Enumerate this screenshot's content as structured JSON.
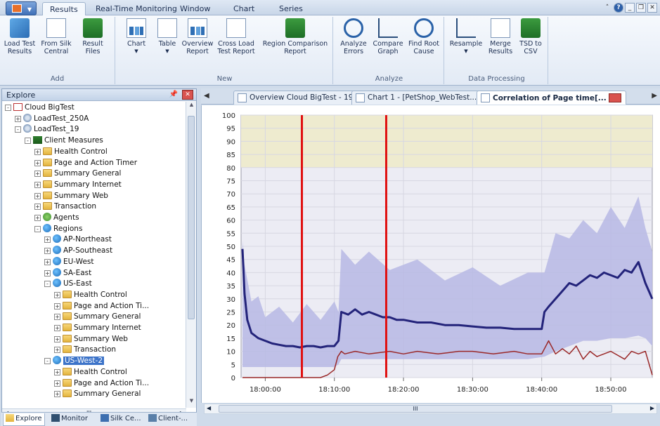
{
  "ribbon_tabs": [
    {
      "label": "Results",
      "active": true
    },
    {
      "label": "Real-Time Monitoring",
      "active": false
    },
    {
      "label": "Window",
      "active": false
    },
    {
      "label": "Chart",
      "active": false
    },
    {
      "label": "Series",
      "active": false
    }
  ],
  "ribbon": {
    "groups": [
      {
        "label": "Add",
        "buttons": [
          "Load Test Results",
          "From Silk Central",
          "Result Files"
        ]
      },
      {
        "label": "New",
        "buttons": [
          "Chart",
          "Table",
          "Overview Report",
          "Cross Load Test Report",
          "Region Comparison Report"
        ]
      },
      {
        "label": "Analyze",
        "buttons": [
          "Analyze Errors",
          "Compare Graph",
          "Find Root Cause"
        ]
      },
      {
        "label": "Data Processing",
        "buttons": [
          "Resample",
          "Merge Results",
          "TSD to CSV"
        ]
      }
    ]
  },
  "explore": {
    "title": "Explore",
    "tree": [
      {
        "label": "Cloud BigTest",
        "level": 0,
        "icon": "project-icon",
        "exp": "-"
      },
      {
        "label": "LoadTest_250A",
        "level": 1,
        "icon": "gear-icon",
        "exp": "+"
      },
      {
        "label": "LoadTest_19",
        "level": 1,
        "icon": "gear-icon",
        "exp": "-"
      },
      {
        "label": "Client Measures",
        "level": 2,
        "icon": "measures-icon",
        "exp": "-"
      },
      {
        "label": "Health Control",
        "level": 3,
        "icon": "folder-icon",
        "exp": "+"
      },
      {
        "label": "Page and Action Timer",
        "level": 3,
        "icon": "folder-icon",
        "exp": "+"
      },
      {
        "label": "Summary General",
        "level": 3,
        "icon": "folder-icon",
        "exp": "+"
      },
      {
        "label": "Summary Internet",
        "level": 3,
        "icon": "folder-icon",
        "exp": "+"
      },
      {
        "label": "Summary Web",
        "level": 3,
        "icon": "folder-icon",
        "exp": "+"
      },
      {
        "label": "Transaction",
        "level": 3,
        "icon": "folder-icon",
        "exp": "+"
      },
      {
        "label": "Agents",
        "level": 3,
        "icon": "agents-icon",
        "exp": "+"
      },
      {
        "label": "Regions",
        "level": 3,
        "icon": "region-icon",
        "exp": "-"
      },
      {
        "label": "AP-Northeast",
        "level": 4,
        "icon": "region-icon",
        "exp": "+"
      },
      {
        "label": "AP-Southeast",
        "level": 4,
        "icon": "region-icon",
        "exp": "+"
      },
      {
        "label": "EU-West",
        "level": 4,
        "icon": "region-icon",
        "exp": "+"
      },
      {
        "label": "SA-East",
        "level": 4,
        "icon": "region-icon",
        "exp": "+"
      },
      {
        "label": "US-East",
        "level": 4,
        "icon": "region-icon",
        "exp": "-"
      },
      {
        "label": "Health Control",
        "level": 5,
        "icon": "folder-icon",
        "exp": "+"
      },
      {
        "label": "Page and Action Ti...",
        "level": 5,
        "icon": "folder-icon",
        "exp": "+"
      },
      {
        "label": "Summary General",
        "level": 5,
        "icon": "folder-icon",
        "exp": "+"
      },
      {
        "label": "Summary Internet",
        "level": 5,
        "icon": "folder-icon",
        "exp": "+"
      },
      {
        "label": "Summary Web",
        "level": 5,
        "icon": "folder-icon",
        "exp": "+"
      },
      {
        "label": "Transaction",
        "level": 5,
        "icon": "folder-icon",
        "exp": "+"
      },
      {
        "label": "US-West-2",
        "level": 4,
        "icon": "region-icon",
        "exp": "-",
        "selected": true
      },
      {
        "label": "Health Control",
        "level": 5,
        "icon": "folder-icon",
        "exp": "+"
      },
      {
        "label": "Page and Action Ti...",
        "level": 5,
        "icon": "folder-icon",
        "exp": "+"
      },
      {
        "label": "Summary General",
        "level": 5,
        "icon": "folder-icon",
        "exp": "+"
      }
    ],
    "hscroll_label": "III"
  },
  "bottom_tabs": [
    {
      "label": "Explore",
      "active": true
    },
    {
      "label": "Monitor",
      "active": false
    },
    {
      "label": "Silk Ce...",
      "active": false
    },
    {
      "label": "Client-...",
      "active": false
    }
  ],
  "doc_tabs": [
    {
      "label": "Overview Cloud BigTest - 19",
      "active": false
    },
    {
      "label": "Chart 1 - [PetShop_WebTest...",
      "active": false
    },
    {
      "label": "Correlation of Page time[...",
      "active": true
    }
  ],
  "doc_hscroll_label": "III",
  "chart_data": {
    "type": "line",
    "ylim": [
      0,
      100
    ],
    "yticks": [
      0,
      5,
      10,
      15,
      20,
      25,
      30,
      35,
      40,
      45,
      50,
      55,
      60,
      65,
      70,
      75,
      80,
      85,
      90,
      95,
      100
    ],
    "xticks": [
      "18:00:00",
      "18:10:00",
      "18:20:00",
      "18:30:00",
      "18:40:00",
      "18:50:00"
    ],
    "xlim_minutes": [
      -3.5,
      56
    ],
    "threshold_band": [
      80,
      100
    ],
    "markers_minutes": [
      5.3,
      17.5
    ],
    "colors": {
      "band": "#eeebcf",
      "envelope": "#b7b8e4",
      "series_main": "#23237a",
      "series_secondary": "#9a2828",
      "marker": "#e01010",
      "plot_bg": "#ececf4"
    },
    "series": [
      {
        "role": "main",
        "x": [
          -3.3,
          -3,
          -2.6,
          -2,
          -1,
          0,
          1,
          2,
          3,
          4,
          5,
          6,
          7,
          8,
          9,
          10,
          10.6,
          11,
          12,
          13,
          14,
          15,
          16,
          17,
          18,
          19,
          20,
          22,
          24,
          26,
          28,
          30,
          32,
          34,
          36,
          38,
          40,
          40.4,
          41,
          42,
          43,
          44,
          45,
          46,
          47,
          48,
          49,
          50,
          51,
          52,
          53,
          54,
          55,
          56
        ],
        "y": [
          49,
          32,
          22,
          17,
          15,
          14,
          13,
          12.5,
          12,
          12,
          11.5,
          12,
          12,
          11.5,
          12,
          12,
          14,
          25,
          24,
          26,
          24,
          25,
          24,
          23,
          23,
          22,
          22,
          21,
          21,
          20,
          20,
          19.5,
          19,
          19,
          18.5,
          18.5,
          18.5,
          25,
          27,
          30,
          33,
          36,
          35,
          37,
          39,
          38,
          40,
          39,
          38,
          41,
          40,
          44,
          36,
          30
        ]
      },
      {
        "role": "secondary",
        "x": [
          -3.3,
          8,
          9,
          10,
          10.5,
          11,
          11.5,
          13,
          15,
          18,
          20,
          22,
          25,
          28,
          30,
          33,
          36,
          38,
          40,
          41,
          42,
          43,
          44,
          45,
          46,
          47,
          48,
          50,
          52,
          53,
          54,
          55,
          56
        ],
        "y": [
          0,
          0,
          1,
          3,
          8,
          10,
          9,
          10,
          9,
          10,
          9,
          10,
          9,
          10,
          10,
          9,
          10,
          9,
          9,
          14,
          9,
          11,
          9,
          12,
          7,
          10,
          8,
          10,
          7,
          10,
          9,
          10,
          1
        ]
      }
    ],
    "envelope": {
      "x": [
        -3.3,
        -3,
        -2,
        -1,
        0,
        2,
        4,
        6,
        8,
        10,
        10.6,
        11,
        13,
        15,
        18,
        22,
        26,
        30,
        34,
        38,
        40.4,
        42,
        44,
        46,
        48,
        50,
        52,
        54,
        55,
        56
      ],
      "upper": [
        55,
        40,
        32,
        28,
        26,
        24,
        24,
        25,
        25,
        26,
        28,
        46,
        46,
        45,
        44,
        42,
        40,
        39,
        38,
        37,
        43,
        52,
        56,
        57,
        58,
        62,
        60,
        66,
        60,
        45
      ],
      "lower": [
        4,
        4,
        4,
        4,
        4,
        4,
        4,
        4,
        4,
        4,
        5,
        7,
        7,
        7,
        7,
        7,
        7,
        7,
        7,
        7,
        8,
        10,
        12,
        14,
        14,
        15,
        15,
        16,
        15,
        12
      ]
    }
  }
}
